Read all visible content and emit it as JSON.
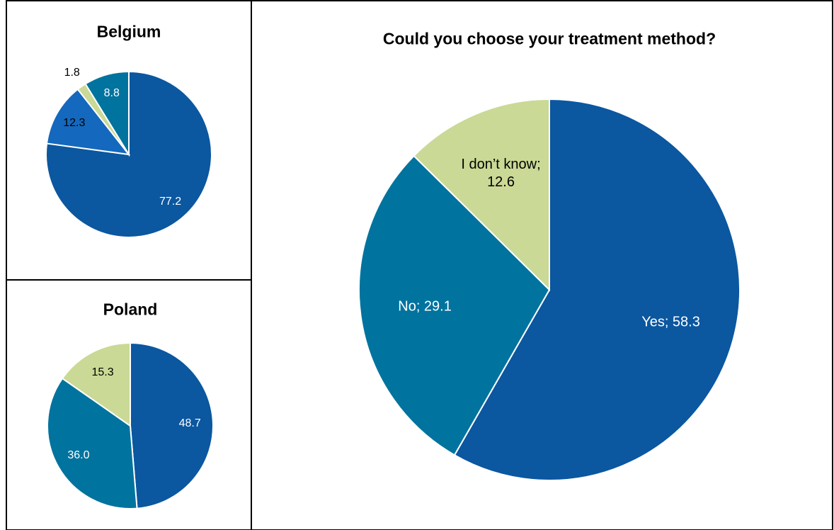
{
  "chart_data": [
    {
      "type": "pie",
      "title": "Belgium",
      "values": [
        77.2,
        12.3,
        1.8,
        8.8
      ],
      "colors": [
        "#0b57a0",
        "#1468bd",
        "#cad995",
        "#00739e"
      ],
      "label_colors": [
        "#ffffff",
        "#000000",
        "#000000",
        "#ffffff"
      ]
    },
    {
      "type": "pie",
      "title": "Poland",
      "values": [
        48.7,
        36.0,
        15.3
      ],
      "value_labels": [
        "48.7",
        "36.0",
        "15.3"
      ],
      "colors": [
        "#0b57a0",
        "#00739e",
        "#cad995"
      ],
      "label_colors": [
        "#ffffff",
        "#ffffff",
        "#000000"
      ]
    },
    {
      "type": "pie",
      "title": "Could you choose your treatment method?",
      "values": [
        58.3,
        29.1,
        12.6
      ],
      "value_labels": [
        "Yes; 58.3",
        "No; 29.1",
        "I don’t know; 12.6"
      ],
      "colors": [
        "#0b57a0",
        "#00739e",
        "#cad995"
      ],
      "label_colors": [
        "#ffffff",
        "#ffffff",
        "#000000"
      ]
    }
  ]
}
